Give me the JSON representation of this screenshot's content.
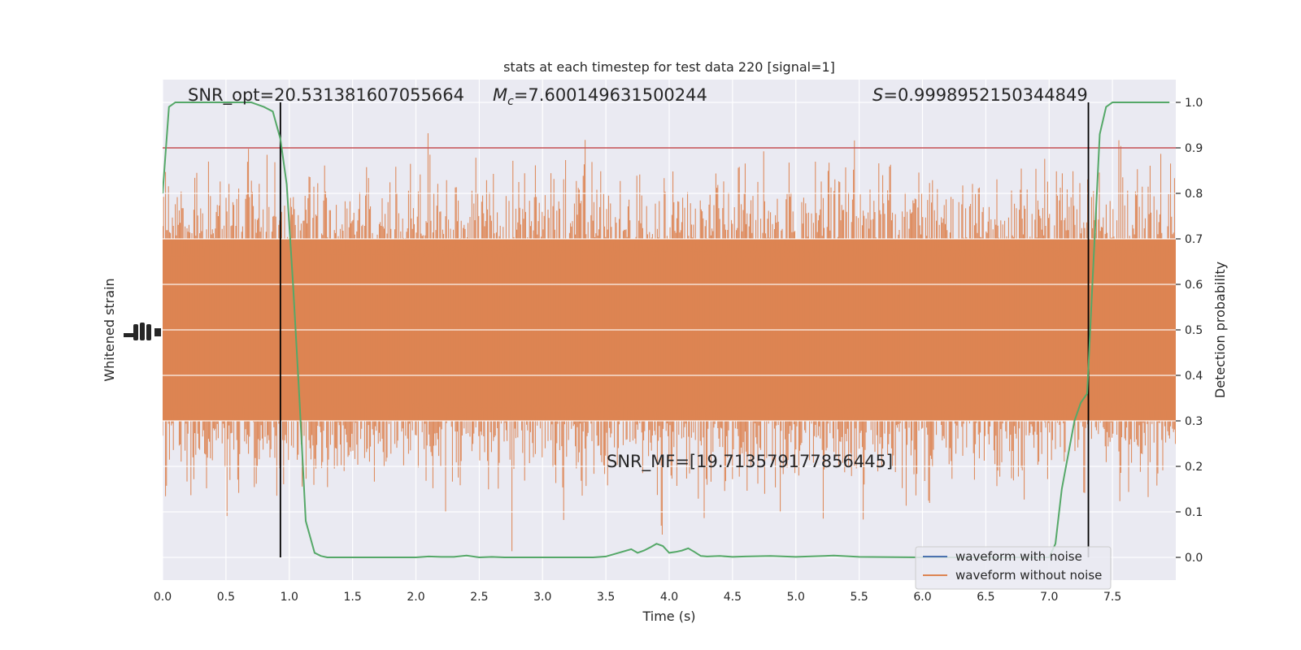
{
  "chart_data": {
    "type": "line",
    "title": "stats at each timestep for test data 220 [signal=1]",
    "xlabel": "Time (s)",
    "ylabel_left": "Whitened strain",
    "ylabel_right": "Detection probability",
    "xlim": [
      0.0,
      8.0
    ],
    "ylim_right": [
      -0.05,
      1.05
    ],
    "x_ticks": [
      "0.0",
      "0.5",
      "1.0",
      "1.5",
      "2.0",
      "2.5",
      "3.0",
      "3.5",
      "4.0",
      "4.5",
      "5.0",
      "5.5",
      "6.0",
      "6.5",
      "7.0",
      "7.5"
    ],
    "y_ticks_right": [
      "0.0",
      "0.1",
      "0.2",
      "0.3",
      "0.4",
      "0.5",
      "0.6",
      "0.7",
      "0.8",
      "0.9",
      "1.0"
    ],
    "grid": true,
    "legend": {
      "placement": "lower-right",
      "entries": [
        {
          "label": "waveform with noise",
          "color": "#4c72b0"
        },
        {
          "label": "waveform without noise",
          "color": "#dd8452"
        }
      ]
    },
    "annotations": {
      "snr_opt": "SNR_opt=20.531381607055664",
      "mc_symbol": "M",
      "mc_subscript": "c",
      "mc_value": "=7.600149631500244",
      "s_symbol": "S",
      "s_value": "=0.9998952150344849",
      "snr_mf": "SNR_MF=[19.713579177856445]"
    },
    "threshold": {
      "y": 0.9,
      "color": "#c44e52"
    },
    "vertical_lines": [
      0.93,
      7.31
    ],
    "strain_band": {
      "center": 0.5,
      "core_half_width": 0.2,
      "color": "#dd8452"
    },
    "detection_probability": {
      "color": "#55a868",
      "x": [
        0.0,
        0.05,
        0.1,
        0.2,
        0.3,
        0.4,
        0.5,
        0.6,
        0.7,
        0.8,
        0.87,
        0.93,
        0.98,
        1.03,
        1.08,
        1.13,
        1.2,
        1.25,
        1.3,
        1.5,
        2.0,
        2.1,
        2.2,
        2.3,
        2.4,
        2.5,
        2.6,
        2.7,
        3.0,
        3.4,
        3.5,
        3.6,
        3.7,
        3.75,
        3.8,
        3.85,
        3.9,
        3.95,
        4.0,
        4.05,
        4.1,
        4.15,
        4.2,
        4.25,
        4.3,
        4.4,
        4.5,
        4.6,
        4.8,
        5.0,
        5.3,
        5.5,
        6.0,
        6.5,
        7.0,
        7.05,
        7.1,
        7.2,
        7.25,
        7.3,
        7.35,
        7.4,
        7.45,
        7.5,
        7.6,
        7.7,
        7.8,
        7.9,
        7.95
      ],
      "y": [
        0.8,
        0.99,
        1.0,
        1.0,
        1.0,
        1.0,
        1.0,
        1.0,
        1.0,
        0.99,
        0.98,
        0.92,
        0.82,
        0.6,
        0.35,
        0.08,
        0.01,
        0.003,
        0.0,
        0.0,
        0.0,
        0.002,
        0.001,
        0.001,
        0.004,
        0.0,
        0.001,
        0.0,
        0.0,
        0.0,
        0.002,
        0.01,
        0.018,
        0.01,
        0.015,
        0.022,
        0.03,
        0.025,
        0.01,
        0.012,
        0.015,
        0.02,
        0.012,
        0.003,
        0.002,
        0.003,
        0.001,
        0.002,
        0.003,
        0.001,
        0.004,
        0.001,
        0.0,
        0.0,
        0.0,
        0.03,
        0.15,
        0.3,
        0.34,
        0.36,
        0.65,
        0.93,
        0.99,
        1.0,
        1.0,
        1.0,
        1.0,
        1.0,
        1.0
      ]
    }
  }
}
